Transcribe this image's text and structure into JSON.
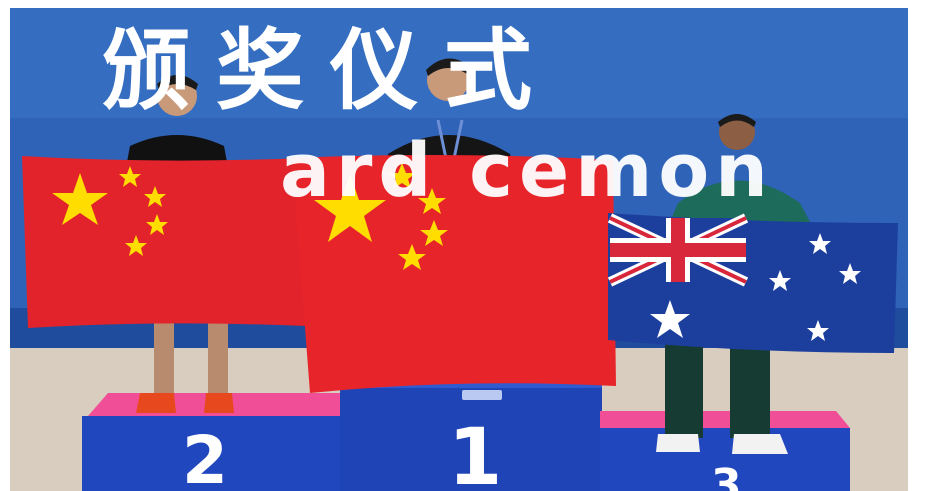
{
  "banner": {
    "title_cn": "颁奖仪式",
    "title_en_partial": "ard  cemon"
  },
  "podium": {
    "first_place": "1",
    "second_place": "2",
    "third_place": "3"
  },
  "flags": [
    "china-flag",
    "china-flag",
    "australia-flag"
  ],
  "colors": {
    "backdrop_blue": "#2b5fb3",
    "podium_blue": "#1f47b8",
    "podium_top_pink": "#e85a9a",
    "china_red": "#e8242b",
    "star_yellow": "#ffde00",
    "australia_blue": "#1c3f9e"
  }
}
